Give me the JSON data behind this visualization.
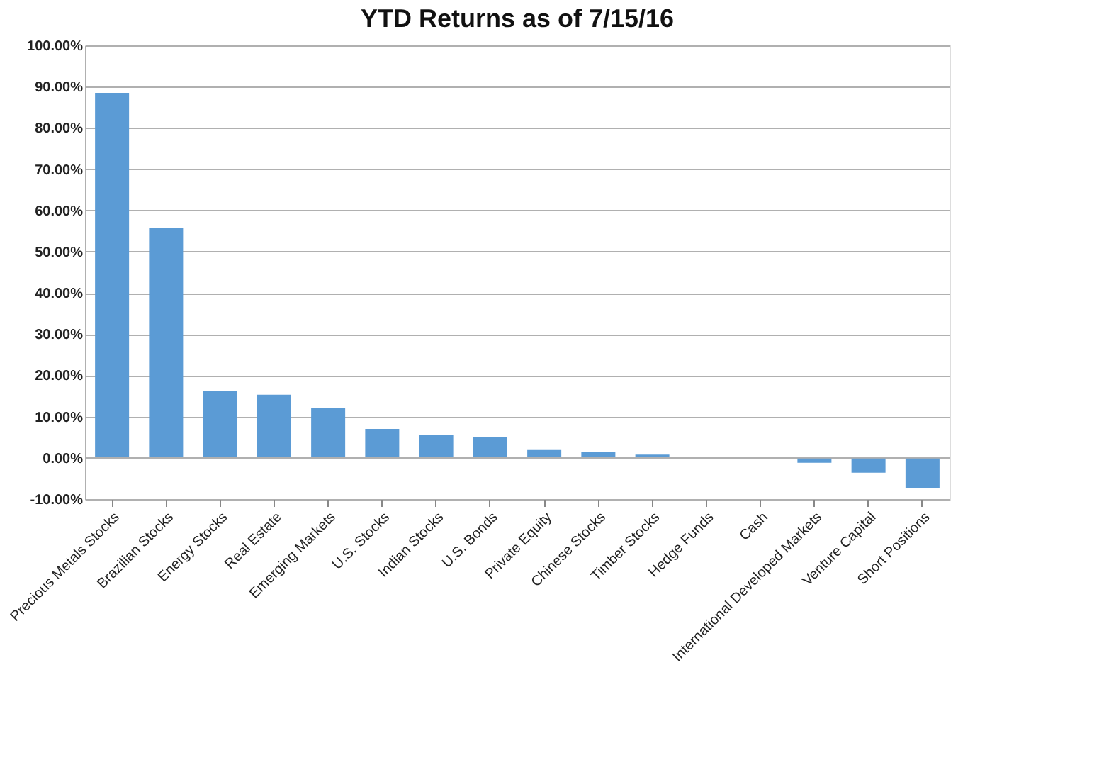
{
  "chart_data": {
    "type": "bar",
    "title": "YTD Returns as of 7/15/16",
    "categories": [
      "Precious Metals Stocks",
      "Brazilian Stocks",
      "Energy Stocks",
      "Real Estate",
      "Emerging Markets",
      "U.S. Stocks",
      "Indian Stocks",
      "U.S. Bonds",
      "Private Equity",
      "Chinese Stocks",
      "Timber Stocks",
      "Hedge Funds",
      "Cash",
      "International Developed Markets",
      "Venture Capital",
      "Short Positions"
    ],
    "values": [
      88.5,
      55.7,
      16.3,
      15.3,
      12.0,
      7.0,
      5.6,
      5.1,
      1.9,
      1.5,
      0.8,
      0.3,
      0.3,
      -1.2,
      -3.6,
      -7.3
    ],
    "color": "#5b9bd5",
    "ylim": [
      -10,
      100
    ],
    "yticks": [
      {
        "value": -10,
        "label": "-10.00%"
      },
      {
        "value": 0,
        "label": "0.00%"
      },
      {
        "value": 10,
        "label": "10.00%"
      },
      {
        "value": 20,
        "label": "20.00%"
      },
      {
        "value": 30,
        "label": "30.00%"
      },
      {
        "value": 40,
        "label": "40.00%"
      },
      {
        "value": 50,
        "label": "50.00%"
      },
      {
        "value": 60,
        "label": "60.00%"
      },
      {
        "value": 70,
        "label": "70.00%"
      },
      {
        "value": 80,
        "label": "80.00%"
      },
      {
        "value": 90,
        "label": "90.00%"
      },
      {
        "value": 100,
        "label": "100.00%"
      }
    ],
    "grid": "y"
  }
}
